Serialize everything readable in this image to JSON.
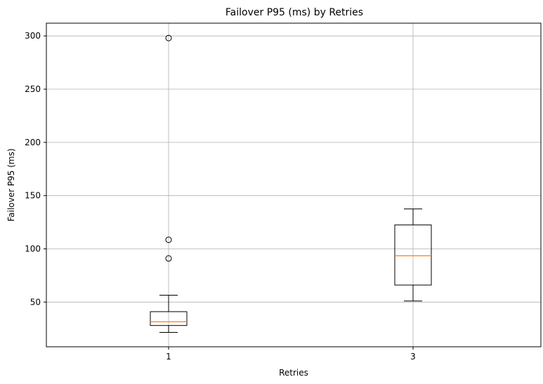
{
  "chart_data": {
    "type": "box",
    "title": "Failover P95 (ms) by Retries",
    "xlabel": "Retries",
    "ylabel": "Failover P95 (ms)",
    "categories": [
      "1",
      "3"
    ],
    "ylim": [
      8,
      312
    ],
    "yticks": [
      50,
      100,
      150,
      200,
      250,
      300
    ],
    "grid": true,
    "boxes": [
      {
        "category": "1",
        "whisker_low": 21.5,
        "q1": 28,
        "median": 31.5,
        "q3": 41,
        "whisker_high": 56.5,
        "fliers": [
          91,
          108.5,
          298
        ]
      },
      {
        "category": "3",
        "whisker_low": 51,
        "q1": 66,
        "median": 93.5,
        "q3": 122.5,
        "whisker_high": 137.5,
        "fliers": []
      }
    ],
    "colors": {
      "median": "#ff7f0e",
      "box": "#000000",
      "grid": "#b0b0b0"
    }
  }
}
